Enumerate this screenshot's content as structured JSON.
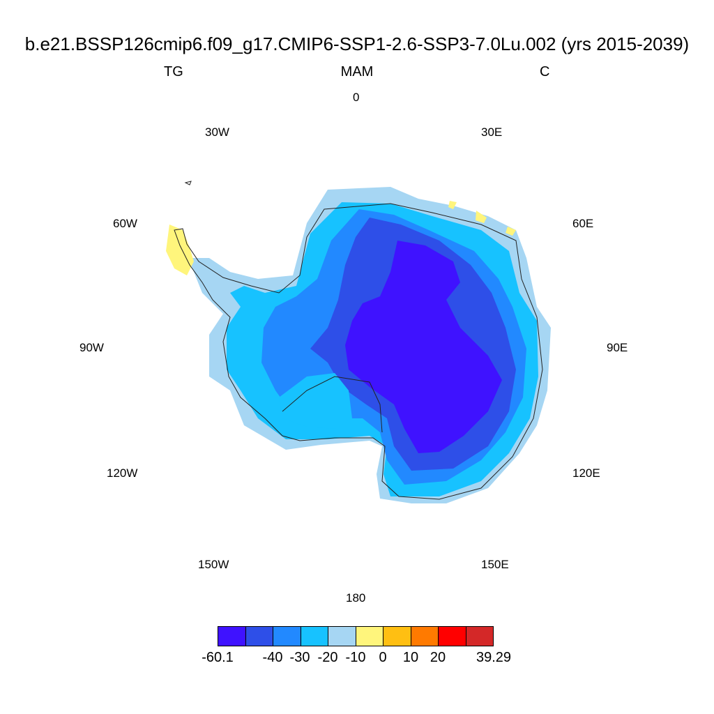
{
  "title": "b.e21.BSSP126cmip6.f09_g17.CMIP6-SSP1-2.6-SSP3-7.0Lu.002 (yrs 2015-2039)",
  "left_label": "TG",
  "center_label": "MAM",
  "right_label": "C",
  "longitude_labels": {
    "l0": "0",
    "l30e": "30E",
    "l60e": "60E",
    "l90e": "90E",
    "l120e": "120E",
    "l150e": "150E",
    "l180": "180",
    "l150w": "150W",
    "l120w": "120W",
    "l90w": "90W",
    "l60w": "60W",
    "l30w": "30W"
  },
  "colorbar": {
    "colors": [
      "#3f12ff",
      "#2e4fe8",
      "#2289ff",
      "#17c2ff",
      "#a6d6f3",
      "#fff57c",
      "#ffbf12",
      "#ff7a00",
      "#ff0000",
      "#d42828"
    ],
    "labels": [
      "-60.1",
      "-40",
      "-30",
      "-20",
      "-10",
      "0",
      "10",
      "20",
      "39.29"
    ]
  },
  "chart_data": {
    "type": "heatmap",
    "projection": "south-polar-stereographic",
    "variable": "TG",
    "season": "MAM",
    "units": "C",
    "data_range": [
      -60.1,
      39.29
    ],
    "levels": [
      -60.1,
      -40,
      -30,
      -20,
      -10,
      0,
      10,
      20,
      39.29
    ]
  }
}
